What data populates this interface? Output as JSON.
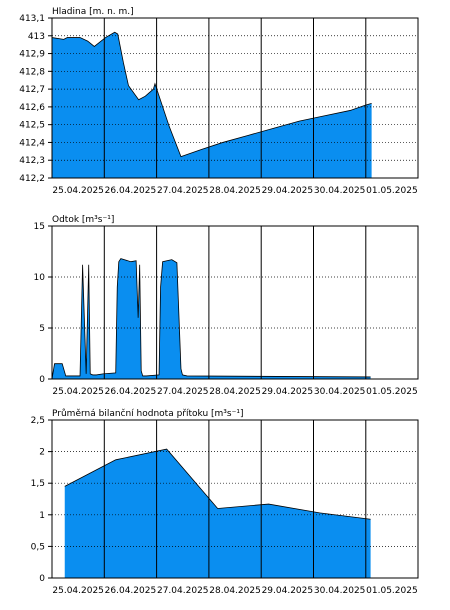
{
  "chart_data": [
    {
      "type": "area",
      "title": "Hladina [m. n. m.]",
      "ylim": [
        412.2,
        413.1
      ],
      "yticks": [
        "413,1",
        "413",
        "412,9",
        "412,8",
        "412,7",
        "412,6",
        "412,5",
        "412,4",
        "412,3",
        "412,2"
      ],
      "ytick_values": [
        413.1,
        413.0,
        412.9,
        412.8,
        412.7,
        412.6,
        412.5,
        412.4,
        412.3,
        412.2
      ],
      "xlim": [
        -0.25,
        6.93
      ],
      "xticks": [
        "25.04.2025",
        "26.04.2025",
        "27.04.2025",
        "28.04.2025",
        "29.04.2025",
        "30.04.2025",
        "01.05.2025"
      ],
      "grid": true,
      "fill_color": "#0a8ef0",
      "x": [
        -0.25,
        -0.02,
        0.05,
        0.3,
        0.45,
        0.58,
        0.8,
        0.98,
        1.04,
        1.15,
        1.25,
        1.45,
        1.58,
        1.74,
        1.77,
        2.05,
        2.28,
        2.68,
        3.1,
        3.6,
        4.1,
        4.6,
        5.1,
        5.6,
        5.9,
        6.02
      ],
      "y": [
        412.99,
        412.98,
        412.99,
        412.99,
        412.97,
        412.94,
        412.99,
        413.02,
        413.01,
        412.85,
        412.72,
        412.64,
        412.66,
        412.7,
        412.73,
        412.49,
        412.32,
        412.36,
        412.4,
        412.44,
        412.48,
        412.52,
        412.55,
        412.58,
        412.61,
        412.62
      ]
    },
    {
      "type": "area",
      "title": "Odtok [m³s⁻¹]",
      "ylim": [
        0,
        15
      ],
      "yticks": [
        "15",
        "10",
        "5",
        "0"
      ],
      "ytick_values": [
        15,
        10,
        5,
        0
      ],
      "xlim": [
        -0.25,
        6.93
      ],
      "xticks": [
        "25.04.2025",
        "26.04.2025",
        "27.04.2025",
        "28.04.2025",
        "29.04.2025",
        "30.04.2025",
        "01.05.2025"
      ],
      "grid": true,
      "fill_color": "#0a8ef0",
      "x": [
        -0.25,
        -0.2,
        -0.05,
        0.02,
        0.3,
        0.35,
        0.42,
        0.47,
        0.5,
        0.55,
        0.58,
        0.62,
        0.75,
        1.0,
        1.03,
        1.06,
        1.1,
        1.3,
        1.4,
        1.44,
        1.47,
        1.5,
        1.53,
        1.6,
        1.85,
        1.88,
        1.92,
        2.1,
        2.2,
        2.28,
        2.31,
        2.4,
        6.0
      ],
      "y": [
        0,
        1.5,
        1.5,
        0.3,
        0.3,
        11.2,
        0.5,
        11.2,
        0.5,
        0.4,
        0.4,
        0.4,
        0.5,
        0.6,
        9.0,
        11.5,
        11.8,
        11.5,
        11.6,
        6.0,
        11.2,
        0.8,
        0.3,
        0.3,
        0.4,
        9.0,
        11.5,
        11.7,
        11.4,
        1.0,
        0.4,
        0.3,
        0.2
      ]
    },
    {
      "type": "area",
      "title": "Průměrná bilanční hodnota přítoku   [m³s⁻¹]",
      "ylim": [
        0,
        2.5
      ],
      "yticks": [
        "2,5",
        "2",
        "1,5",
        "1",
        "0,5",
        "0"
      ],
      "ytick_values": [
        2.5,
        2.0,
        1.5,
        1.0,
        0.5,
        0.0
      ],
      "xlim": [
        -0.25,
        6.93
      ],
      "xticks": [
        "25.04.2025",
        "26.04.2025",
        "27.04.2025",
        "28.04.2025",
        "29.04.2025",
        "30.04.2025",
        "01.05.2025"
      ],
      "grid": true,
      "fill_color": "#0a8ef0",
      "x": [
        0.0,
        1.0,
        2.0,
        3.0,
        4.0,
        5.0,
        6.0
      ],
      "y": [
        1.45,
        1.87,
        2.04,
        1.1,
        1.17,
        1.03,
        0.93
      ]
    }
  ]
}
